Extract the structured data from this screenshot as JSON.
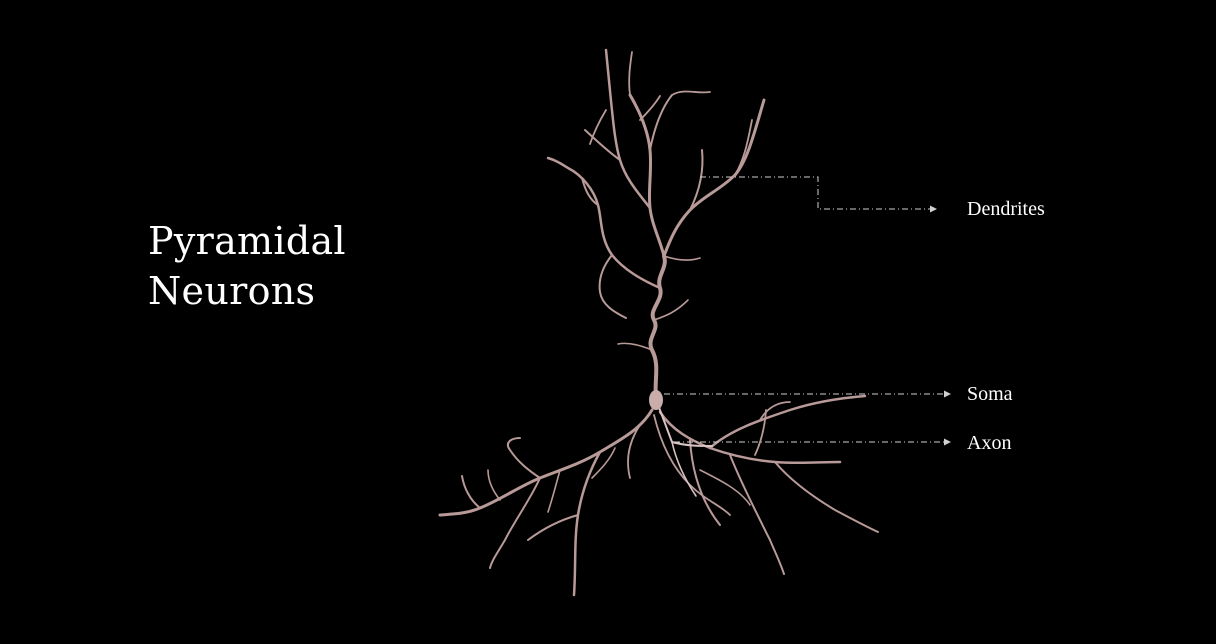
{
  "title": {
    "line1": "Pyramidal",
    "line2": "Neurons"
  },
  "labels": {
    "dendrites": "Dendrites",
    "soma": "Soma",
    "axon": "Axon"
  },
  "colors": {
    "background": "#000000",
    "text": "#ffffff",
    "neuron": "#b89a98",
    "neuron_highlight": "#d8c4c2",
    "leader": "#d0d0d0"
  }
}
